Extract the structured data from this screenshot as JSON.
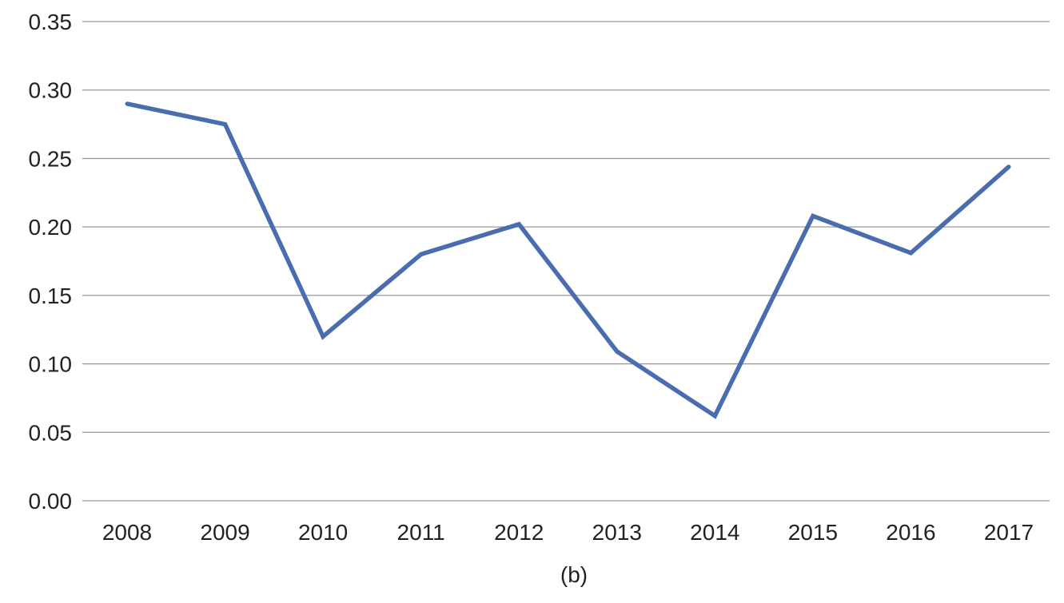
{
  "chart_data": {
    "type": "line",
    "caption": "(b)",
    "x": [
      "2008",
      "2009",
      "2010",
      "2011",
      "2012",
      "2013",
      "2014",
      "2015",
      "2016",
      "2017"
    ],
    "series": [
      {
        "values": [
          0.29,
          0.275,
          0.12,
          0.18,
          0.202,
          0.109,
          0.062,
          0.208,
          0.181,
          0.244
        ]
      }
    ],
    "ylim": [
      0,
      0.35
    ],
    "yticks": [
      "0.00",
      "0.05",
      "0.10",
      "0.15",
      "0.20",
      "0.25",
      "0.30",
      "0.35"
    ],
    "grid": "horizontal",
    "legend": "none",
    "line_color": "#4a6db0",
    "grid_color": "#9a9a9a"
  }
}
